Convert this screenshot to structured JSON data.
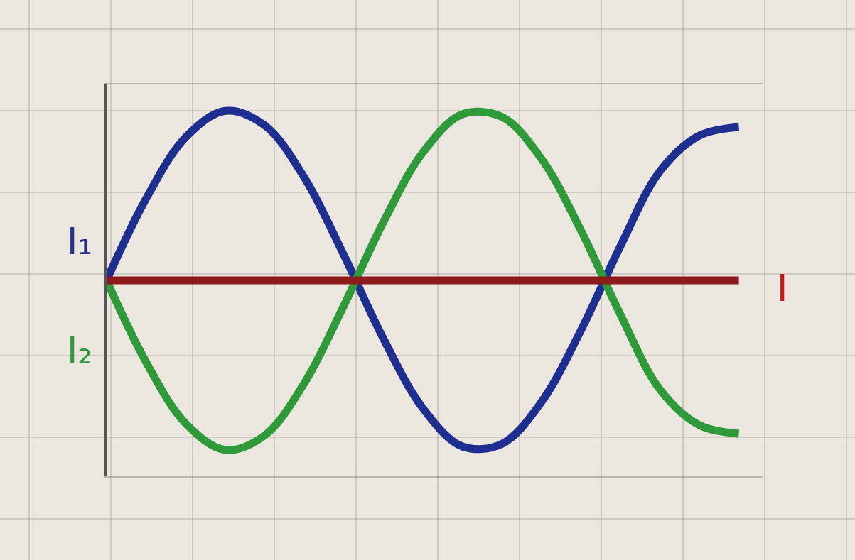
{
  "chart_data": {
    "type": "line",
    "x": [
      0,
      0.5,
      1,
      1.5,
      2,
      2.5,
      3,
      3.5,
      4,
      4.5,
      5,
      5.5,
      6,
      6.5,
      7,
      7.5,
      8
    ],
    "series": [
      {
        "name": "I₁",
        "color": "#1f2f8f",
        "values": [
          0,
          0.96,
          1.68,
          1.99,
          1.82,
          1.21,
          0.3,
          -0.68,
          -1.5,
          -1.95,
          -1.92,
          -1.43,
          -0.59,
          0.4,
          1.28,
          1.7,
          1.8
        ]
      },
      {
        "name": "I₂",
        "color": "#2e9a3a",
        "values": [
          0,
          -0.96,
          -1.68,
          -1.99,
          -1.82,
          -1.21,
          -0.3,
          0.68,
          1.5,
          1.95,
          1.92,
          1.43,
          0.59,
          -0.4,
          -1.28,
          -1.7,
          -1.8
        ]
      },
      {
        "name": "I",
        "color": "#8b1a1a",
        "values": [
          0,
          0,
          0,
          0,
          0,
          0,
          0,
          0,
          0,
          0,
          0,
          0,
          0,
          0,
          0,
          0,
          0
        ]
      }
    ],
    "xlim": [
      0,
      8.3
    ],
    "ylim": [
      -2.3,
      2.3
    ],
    "tick_labels": false
  }
}
